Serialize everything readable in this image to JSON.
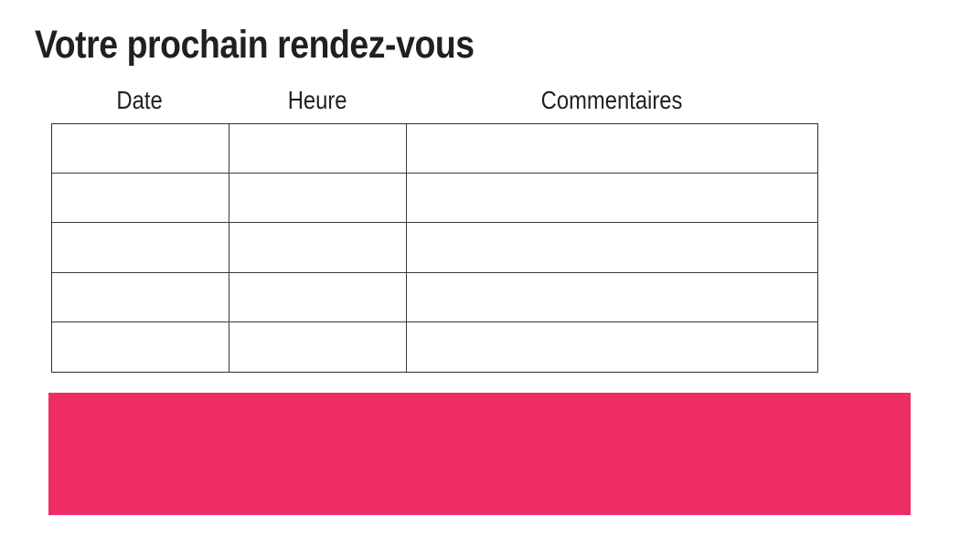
{
  "page": {
    "title": "Votre prochain rendez-vous",
    "background": "#ffffff"
  },
  "table": {
    "headers": [
      "Date",
      "Heure",
      "Commentaires"
    ],
    "rows": [
      [
        "",
        "",
        ""
      ],
      [
        "",
        "",
        ""
      ],
      [
        "",
        "",
        ""
      ],
      [
        "",
        "",
        ""
      ],
      [
        "",
        "",
        ""
      ]
    ]
  },
  "footer_band": {
    "type": "decorative-rectangle",
    "color": "#EE2D67"
  },
  "colors": {
    "accent_pink": "#EE2D67",
    "table_border": "#2e2e2e",
    "text": "#231f20",
    "background": "#ffffff"
  }
}
